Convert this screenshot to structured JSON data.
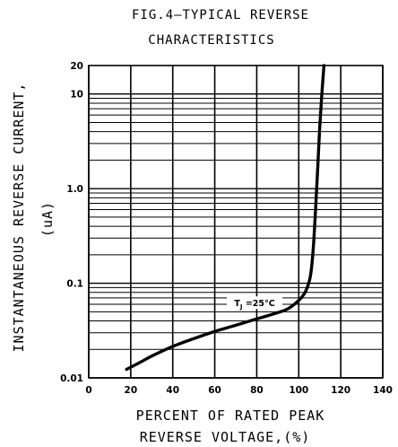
{
  "chart_data": {
    "type": "line",
    "title_lines": [
      "FIG.4–TYPICAL  REVERSE",
      "CHARACTERISTICS"
    ],
    "ylabel_lines": [
      "INSTANTANEOUS  REVERSE  CURRENT,",
      "(uA)"
    ],
    "xlabel_lines": [
      "PERCENT  OF  RATED  PEAK",
      "REVERSE  VOLTAGE,(%)"
    ],
    "xlim": [
      0,
      140
    ],
    "ylim": [
      0.01,
      20
    ],
    "yscale": "log",
    "grid": true,
    "x_ticks": [
      {
        "value": 0,
        "label": "0"
      },
      {
        "value": 20,
        "label": "20"
      },
      {
        "value": 40,
        "label": "40"
      },
      {
        "value": 60,
        "label": "60"
      },
      {
        "value": 80,
        "label": "80"
      },
      {
        "value": 100,
        "label": "100"
      },
      {
        "value": 120,
        "label": "120"
      },
      {
        "value": 140,
        "label": "140"
      }
    ],
    "y_ticks": [
      {
        "value": 0.01,
        "label": "0.01"
      },
      {
        "value": 0.1,
        "label": "0.1"
      },
      {
        "value": 1,
        "label": "1.0"
      },
      {
        "value": 10,
        "label": "10"
      },
      {
        "value": 20,
        "label": "20"
      }
    ],
    "annotation": {
      "text": "T",
      "subscript": "J",
      "suffix": " =25°C",
      "x": 79,
      "y": 0.061
    },
    "series": [
      {
        "x": [
          18,
          25,
          30,
          40,
          50,
          60,
          70,
          80,
          90,
          95,
          100,
          103,
          105,
          106,
          107,
          108,
          109,
          110,
          111,
          112
        ],
        "y": [
          0.0123,
          0.0148,
          0.017,
          0.0215,
          0.026,
          0.031,
          0.036,
          0.042,
          0.049,
          0.054,
          0.066,
          0.08,
          0.105,
          0.14,
          0.25,
          0.6,
          1.6,
          4.5,
          10,
          20
        ]
      }
    ]
  }
}
